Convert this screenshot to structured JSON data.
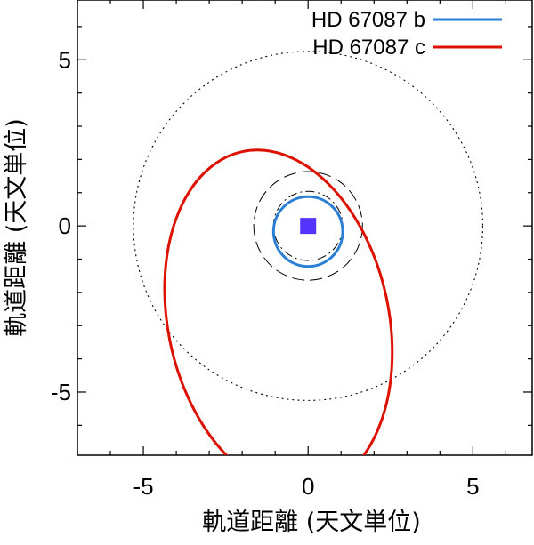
{
  "chart_data": {
    "type": "line",
    "title": "",
    "xlabel": "軌道距離 (天文単位)",
    "ylabel": "軌道距離 (天文単位)",
    "xlim": [
      -7.0,
      6.8
    ],
    "ylim": [
      -6.9,
      6.8
    ],
    "xticks": [
      -5,
      0,
      5
    ],
    "yticks": [
      -5,
      0,
      5
    ],
    "xtick_labels": [
      "-5",
      "0",
      "5"
    ],
    "ytick_labels": [
      "-5",
      "0",
      "5"
    ],
    "grid": false,
    "legend_position": "top-right",
    "star": {
      "x": 0,
      "y": 0,
      "color": "#5533ff",
      "marker": "square"
    },
    "series": [
      {
        "name": "HD 67087 b",
        "color": "#2a7fd4",
        "type": "ellipse",
        "center": [
          0.0,
          -0.17
        ],
        "semi_axes": [
          1.05,
          1.05
        ]
      },
      {
        "name": "HD 67087 c",
        "color": "#dd1100",
        "type": "ellipse",
        "center": [
          -0.9,
          -2.85
        ],
        "semi_axes": [
          3.35,
          5.2
        ],
        "rotation_deg": -12
      }
    ],
    "reference_circles": [
      {
        "style": "dashed",
        "center": [
          0,
          0
        ],
        "radius": 1.65
      },
      {
        "style": "dashdot",
        "center": [
          0,
          0
        ],
        "radius": 1.05
      },
      {
        "style": "dotted",
        "center": [
          0,
          0
        ],
        "radius": 5.3
      }
    ]
  }
}
